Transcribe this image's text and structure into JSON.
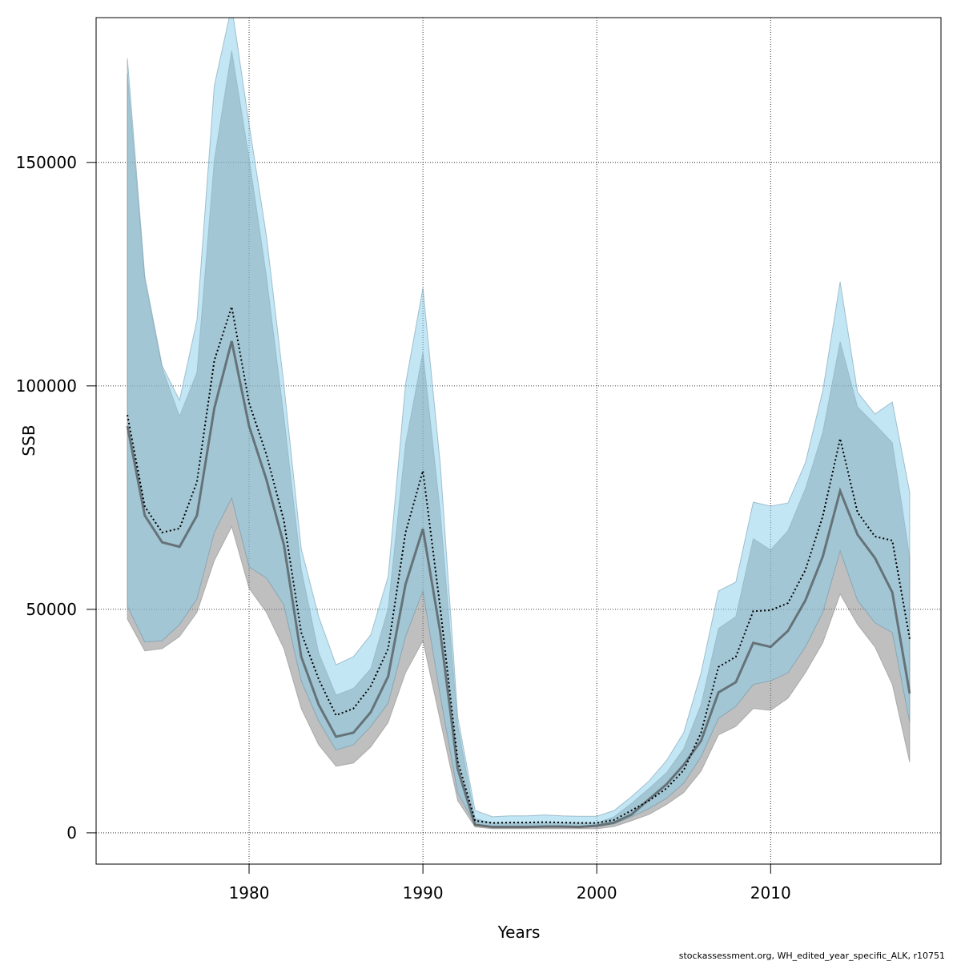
{
  "chart_data": {
    "type": "line",
    "xlabel": "Years",
    "ylabel": "SSB",
    "footnote": "stockassessment.org, WH_edited_year_specific_ALK, r10751",
    "x": [
      1973,
      1974,
      1975,
      1976,
      1977,
      1978,
      1979,
      1980,
      1981,
      1982,
      1983,
      1984,
      1985,
      1986,
      1987,
      1988,
      1989,
      1990,
      1991,
      1992,
      1993,
      1994,
      1995,
      1996,
      1997,
      1998,
      1999,
      2000,
      2001,
      2002,
      2003,
      2004,
      2005,
      2006,
      2007,
      2008,
      2009,
      2010,
      2011,
      2012,
      2013,
      2014,
      2015,
      2016,
      2017,
      2018
    ],
    "series": [
      {
        "color": "#808080",
        "line_style": "solid",
        "values": [
          91000,
          71000,
          65000,
          64000,
          71000,
          95000,
          110000,
          91000,
          79000,
          64500,
          39400,
          28700,
          21500,
          22400,
          27000,
          35000,
          55600,
          68000,
          44800,
          14300,
          1800,
          1300,
          1300,
          1300,
          1400,
          1400,
          1300,
          1600,
          2300,
          4100,
          7500,
          10800,
          15200,
          20600,
          31400,
          33700,
          42500,
          41600,
          45200,
          52000,
          61800,
          76500,
          66700,
          61500,
          53800,
          31200
        ],
        "lower": [
          47800,
          40700,
          41200,
          43900,
          49300,
          60900,
          68500,
          54700,
          49300,
          41200,
          27800,
          19700,
          14900,
          15600,
          19200,
          24700,
          35800,
          43000,
          25000,
          7200,
          1300,
          900,
          900,
          900,
          900,
          900,
          900,
          900,
          1400,
          2700,
          4100,
          6300,
          9000,
          13800,
          21900,
          23800,
          27800,
          27400,
          30100,
          35800,
          42500,
          53400,
          46600,
          41600,
          33200,
          15800
        ],
        "upper": [
          170000,
          123700,
          104000,
          93200,
          103000,
          150500,
          175000,
          151000,
          124500,
          93200,
          59000,
          40300,
          30800,
          32300,
          36700,
          50200,
          87000,
          107500,
          71700,
          24200,
          3200,
          2200,
          2200,
          2200,
          2200,
          2200,
          2200,
          2200,
          3600,
          6600,
          9900,
          13400,
          18800,
          28700,
          45700,
          48400,
          65800,
          63300,
          67600,
          77000,
          89600,
          109900,
          95300,
          91400,
          87300,
          61800
        ]
      },
      {
        "color": "#87ceeb",
        "line_style": "dotted",
        "values": [
          93500,
          73000,
          67200,
          68100,
          78500,
          105700,
          117700,
          96200,
          84600,
          69900,
          44800,
          34400,
          26300,
          27800,
          32800,
          41200,
          67200,
          81000,
          50200,
          16100,
          2700,
          2200,
          2300,
          2300,
          2400,
          2300,
          2200,
          2200,
          2900,
          5000,
          7200,
          9900,
          14000,
          22400,
          37100,
          39400,
          49600,
          49800,
          51400,
          58800,
          70800,
          88200,
          71700,
          66300,
          65400,
          43400
        ],
        "lower": [
          50700,
          42700,
          43000,
          46600,
          52300,
          67200,
          74900,
          59500,
          57000,
          51000,
          34000,
          25000,
          18500,
          19700,
          23800,
          29000,
          43900,
          54100,
          30500,
          9000,
          1800,
          1400,
          1400,
          1400,
          1400,
          1400,
          1400,
          1400,
          2000,
          3600,
          5400,
          7700,
          11100,
          17000,
          25600,
          28300,
          33200,
          34000,
          35800,
          41600,
          49300,
          63100,
          52000,
          47000,
          44800,
          24700
        ],
        "upper": [
          173300,
          124600,
          104500,
          96800,
          114700,
          167200,
          185000,
          158600,
          133500,
          100400,
          63600,
          48400,
          37600,
          39400,
          44300,
          57300,
          100400,
          121900,
          82400,
          26000,
          5000,
          3600,
          3800,
          3800,
          4000,
          3800,
          3700,
          3700,
          5000,
          8100,
          11600,
          16100,
          22400,
          35800,
          54100,
          56100,
          74000,
          73100,
          73800,
          82800,
          98900,
          123300,
          98600,
          93700,
          96400,
          76200
        ]
      }
    ],
    "xlim": [
      1971.2,
      2019.8
    ],
    "ylim": [
      -7000,
      182400
    ],
    "xticks": [
      1980,
      1990,
      2000,
      2010
    ],
    "yticks": [
      0,
      50000,
      100000,
      150000
    ],
    "grid": true
  }
}
